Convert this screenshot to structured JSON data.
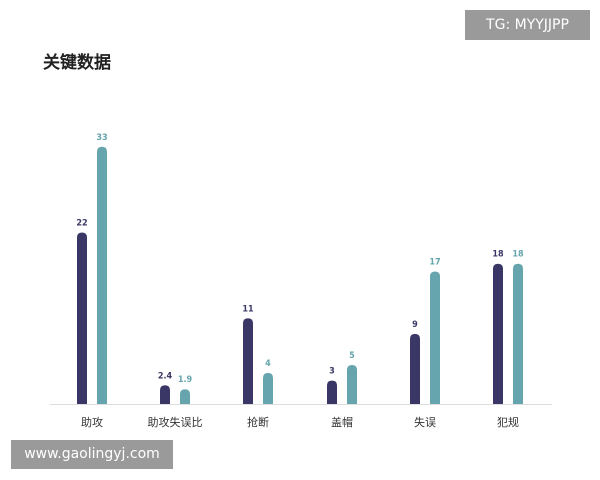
{
  "watermark_top": "TG: MYYJJPP",
  "watermark_bottom": "www.gaolingyj.com",
  "chart_data": {
    "type": "bar",
    "title": "关键数据",
    "categories": [
      "助攻",
      "助攻失误比",
      "抢断",
      "盖帽",
      "失误",
      "犯规"
    ],
    "series": [
      {
        "values": [
          22,
          2.4,
          11,
          3,
          9,
          18
        ],
        "color": "#3a3766",
        "labels": [
          "22",
          "2.4",
          "11",
          "3",
          "9",
          "18"
        ]
      },
      {
        "values": [
          33,
          1.9,
          4,
          5,
          17,
          18
        ],
        "color": "#66a5ad",
        "labels": [
          "33",
          "1.9",
          "4",
          "5",
          "17",
          "18"
        ]
      }
    ],
    "ylim": [
      0,
      34
    ],
    "grid": false,
    "legend": "none",
    "baseline_color": "#dddddd"
  }
}
